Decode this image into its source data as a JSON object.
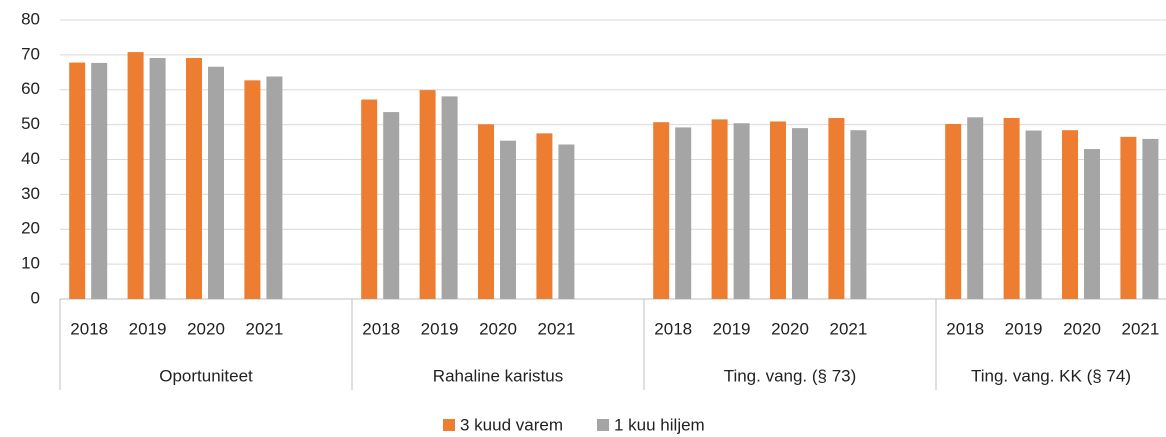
{
  "chart_data": {
    "type": "bar",
    "categories": [
      "2018",
      "2019",
      "2020",
      "2021",
      "2018",
      "2019",
      "2020",
      "2021",
      "2018",
      "2019",
      "2020",
      "2021",
      "2018",
      "2019",
      "2020",
      "2021"
    ],
    "category_groups": [
      "Oportuniteet",
      "Rahaline karistus",
      "Ting. vang. (§ 73)",
      "Ting. vang. KK (§ 74)"
    ],
    "series": [
      {
        "name": "3 kuud varem",
        "color": "#ed7d31",
        "values": [
          67.8,
          70.8,
          69.1,
          62.7,
          57.2,
          59.9,
          50.1,
          47.5,
          50.7,
          51.5,
          50.9,
          51.9,
          50.2,
          51.9,
          48.4,
          46.5
        ]
      },
      {
        "name": "1 kuu hiljem",
        "color": "#a5a5a5",
        "values": [
          67.7,
          69.1,
          66.6,
          63.8,
          53.6,
          58.1,
          45.4,
          44.3,
          49.2,
          50.4,
          49.0,
          48.4,
          52.1,
          48.3,
          43.0,
          45.9
        ]
      }
    ],
    "ylim": [
      0,
      80
    ],
    "yticks": [
      0,
      10,
      20,
      30,
      40,
      50,
      60,
      70,
      80
    ],
    "grid": true,
    "legend": "bottom"
  }
}
